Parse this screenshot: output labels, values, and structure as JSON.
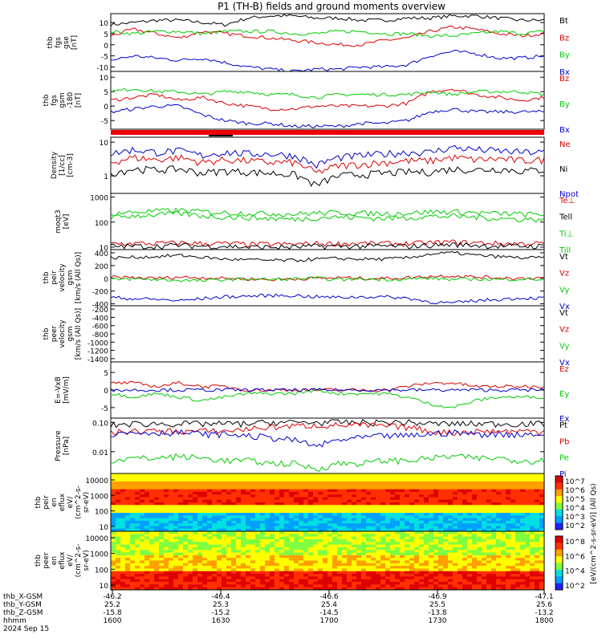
{
  "title": "P1 (TH-B) fields and ground moments overview",
  "chart_data": [
    {
      "type": "line",
      "ylabel": [
        "thb",
        "fgs",
        "gse",
        "[nT]"
      ],
      "yticks": [
        "10",
        "5",
        "0",
        "-5",
        "-10"
      ],
      "ylim": [
        -12,
        14
      ],
      "legend": [
        "Bt",
        "Bz",
        "By",
        "Bx"
      ],
      "colors": [
        "#000000",
        "#dd0000",
        "#00cc00",
        "#0000cc"
      ],
      "series": [
        {
          "name": "Bt",
          "values": [
            9,
            10,
            11,
            11,
            10,
            9,
            12,
            13,
            13,
            12,
            12,
            11,
            11,
            12,
            12,
            13,
            13,
            12,
            11,
            11
          ]
        },
        {
          "name": "Bz",
          "values": [
            4,
            7,
            5,
            3,
            6,
            5,
            4,
            3,
            2,
            1,
            0,
            0,
            2,
            3,
            6,
            8,
            7,
            5,
            4,
            5
          ]
        },
        {
          "name": "By",
          "values": [
            6,
            5,
            6,
            6,
            5,
            6,
            6,
            6,
            5,
            5,
            6,
            6,
            5,
            5,
            4,
            4,
            5,
            6,
            5,
            6
          ]
        },
        {
          "name": "Bx",
          "values": [
            -7,
            -5,
            -6,
            -7,
            -6,
            -8,
            -10,
            -11,
            -12,
            -11,
            -11,
            -10,
            -10,
            -9,
            -5,
            -3,
            -4,
            -6,
            -6,
            -5
          ]
        }
      ]
    },
    {
      "type": "line",
      "ylabel": [
        "thb",
        "fgs",
        "gsm",
        "-180",
        "[nT]"
      ],
      "yticks": [
        "10",
        "5",
        "0",
        "-5"
      ],
      "ylim": [
        -8,
        12
      ],
      "legend": [
        "Bz",
        "By",
        "Bx"
      ],
      "colors": [
        "#dd0000",
        "#00cc00",
        "#0000cc"
      ],
      "series": [
        {
          "name": "Bz",
          "values": [
            2,
            3,
            4,
            2,
            3,
            1,
            0,
            -1,
            -1,
            0,
            0,
            0,
            0,
            1,
            5,
            6,
            4,
            3,
            2,
            3
          ]
        },
        {
          "name": "By",
          "values": [
            5,
            6,
            5,
            5,
            4,
            5,
            5,
            4,
            4,
            3,
            4,
            4,
            4,
            4,
            5,
            4,
            5,
            5,
            5,
            4
          ]
        },
        {
          "name": "Bx",
          "values": [
            -2,
            -1,
            0,
            0,
            -3,
            -5,
            -6,
            -6,
            -7,
            -7,
            -7,
            -6,
            -6,
            -5,
            -2,
            -1,
            -2,
            -2,
            -2,
            -2
          ]
        }
      ]
    },
    {
      "type": "line",
      "ylabel": [
        "Density",
        "[1/cc]",
        "[cm-3]"
      ],
      "yticks": [
        "10",
        "1"
      ],
      "scale": "log",
      "ylim": [
        0.3,
        14
      ],
      "legend": [
        "Ne",
        "Ni",
        "Npot"
      ],
      "colors": [
        "#dd0000",
        "#000000",
        "#0000cc"
      ],
      "series": [
        {
          "name": "Ne",
          "values": [
            2.5,
            3.5,
            3,
            3.5,
            2.5,
            3,
            2.8,
            2.5,
            2.5,
            1.2,
            2,
            2.2,
            2.5,
            2.8,
            2.8,
            3.5,
            3,
            3.2,
            2.8,
            3
          ]
        },
        {
          "name": "Ni",
          "values": [
            1.2,
            1.6,
            1.5,
            1.6,
            1.2,
            1.4,
            1.3,
            1.2,
            1.1,
            0.5,
            1,
            1.1,
            1.2,
            1.3,
            1.3,
            1.6,
            1.5,
            1.6,
            1.4,
            1.5
          ]
        },
        {
          "name": "Npot",
          "values": [
            4.5,
            6,
            5,
            5.5,
            4,
            5,
            4.5,
            4.5,
            4,
            2,
            3.5,
            4,
            4.5,
            5,
            5,
            7,
            6,
            5.5,
            5,
            5
          ]
        }
      ]
    },
    {
      "type": "line",
      "ylabel": [
        "moqt3",
        "[eV]"
      ],
      "yticks": [
        "1000",
        "100",
        "10"
      ],
      "scale": "log",
      "ylim": [
        8,
        1400
      ],
      "legend": [
        "Te⊥",
        "Tell",
        "Ti⊥",
        "Till"
      ],
      "colors": [
        "#dd0000",
        "#000000",
        "#00cc00",
        "#00cc00"
      ],
      "series": [
        {
          "name": "Te⊥",
          "values": [
            14,
            14,
            14,
            15,
            14,
            14,
            13,
            13,
            13,
            14,
            14,
            14,
            14,
            14,
            15,
            16,
            15,
            14,
            14,
            14
          ]
        },
        {
          "name": "Tell",
          "values": [
            11,
            11,
            11,
            12,
            11,
            11,
            10,
            10,
            10,
            11,
            11,
            11,
            11,
            11,
            12,
            13,
            12,
            11,
            11,
            11
          ]
        },
        {
          "name": "Ti⊥",
          "values": [
            220,
            250,
            280,
            300,
            260,
            240,
            230,
            220,
            210,
            230,
            240,
            230,
            220,
            230,
            260,
            260,
            240,
            220,
            210,
            200
          ]
        },
        {
          "name": "Till",
          "values": [
            150,
            180,
            200,
            220,
            180,
            160,
            150,
            140,
            130,
            150,
            160,
            150,
            140,
            150,
            170,
            170,
            160,
            140,
            130,
            130
          ]
        }
      ]
    },
    {
      "type": "line",
      "ylabel": [
        "thb",
        "peir",
        "velocity",
        "gsm",
        "[km/s (All Qs)]"
      ],
      "yticks": [
        "400",
        "200",
        "0",
        "-200",
        "-400"
      ],
      "ylim": [
        -430,
        450
      ],
      "legend": [
        "Vt",
        "Vz",
        "Vy",
        "Vx"
      ],
      "colors": [
        "#000000",
        "#dd0000",
        "#00cc00",
        "#0000cc"
      ],
      "series": [
        {
          "name": "Vt",
          "values": [
            320,
            330,
            340,
            360,
            330,
            300,
            290,
            280,
            280,
            300,
            310,
            300,
            300,
            320,
            380,
            400,
            360,
            340,
            320,
            320
          ]
        },
        {
          "name": "Vz",
          "values": [
            20,
            10,
            0,
            20,
            10,
            0,
            -10,
            -20,
            -10,
            0,
            10,
            0,
            0,
            10,
            30,
            40,
            20,
            10,
            0,
            10
          ]
        },
        {
          "name": "Vy",
          "values": [
            -20,
            -10,
            -20,
            -30,
            -40,
            -20,
            -10,
            -20,
            -10,
            0,
            -20,
            -10,
            -20,
            -10,
            0,
            -20,
            -10,
            -20,
            -10,
            -20
          ]
        },
        {
          "name": "Vx",
          "values": [
            -300,
            -320,
            -330,
            -350,
            -320,
            -290,
            -280,
            -270,
            -270,
            -290,
            -300,
            -290,
            -290,
            -310,
            -370,
            -390,
            -350,
            -330,
            -310,
            -310
          ]
        }
      ]
    },
    {
      "type": "line",
      "ylabel": [
        "thb",
        "peer",
        "velocity",
        "gsm",
        "[km/s (All Qs)]"
      ],
      "yticks": [
        "-200",
        "-400",
        "-600",
        "-800",
        "-1000",
        "-1200",
        "-1400"
      ],
      "ylim": [
        -1480,
        -120
      ],
      "legend": [
        "Vt",
        "Vz",
        "Vy",
        "Vx"
      ],
      "colors": [
        "#000000",
        "#dd0000",
        "#00cc00",
        "#0000cc"
      ],
      "series": []
    },
    {
      "type": "line",
      "ylabel": [
        "E=-VxB",
        "[mV/m]"
      ],
      "yticks": [
        "5",
        "0",
        "-5"
      ],
      "ylim": [
        -8,
        8
      ],
      "legend": [
        "Ez",
        "Ey",
        "Ex"
      ],
      "colors": [
        "#dd0000",
        "#00cc00",
        "#0000cc"
      ],
      "series": [
        {
          "name": "Ez",
          "values": [
            2,
            2,
            1,
            2,
            1,
            1,
            0,
            0,
            0,
            0,
            0,
            0,
            0,
            1,
            2,
            2,
            1,
            1,
            1,
            1
          ]
        },
        {
          "name": "Ey",
          "values": [
            -1,
            -2,
            -1,
            -2,
            -3,
            -2,
            -1,
            -1,
            -1,
            0,
            -1,
            -1,
            -1,
            -2,
            -4,
            -5,
            -3,
            -2,
            -2,
            -2
          ]
        },
        {
          "name": "Ex",
          "values": [
            0,
            0,
            0,
            0,
            0,
            0,
            0,
            0,
            0,
            0,
            0,
            0,
            0,
            0,
            0,
            0,
            0,
            0,
            0,
            0
          ]
        }
      ]
    },
    {
      "type": "line",
      "ylabel": [
        "Pressure",
        "[nPa]"
      ],
      "yticks": [
        "0.10",
        "0.01"
      ],
      "scale": "log",
      "ylim": [
        0.0018,
        0.14
      ],
      "legend": [
        "Pt",
        "Pb",
        "Pe",
        "Pi"
      ],
      "colors": [
        "#000000",
        "#dd0000",
        "#00cc00",
        "#0000cc"
      ],
      "series": [
        {
          "name": "Pt",
          "values": [
            0.08,
            0.09,
            0.09,
            0.09,
            0.09,
            0.09,
            0.09,
            0.1,
            0.1,
            0.1,
            0.1,
            0.1,
            0.1,
            0.1,
            0.09,
            0.09,
            0.09,
            0.09,
            0.09,
            0.09
          ]
        },
        {
          "name": "Pb",
          "values": [
            0.045,
            0.05,
            0.05,
            0.05,
            0.05,
            0.05,
            0.06,
            0.07,
            0.075,
            0.08,
            0.08,
            0.08,
            0.075,
            0.07,
            0.05,
            0.045,
            0.05,
            0.05,
            0.05,
            0.05
          ]
        },
        {
          "name": "Pe",
          "values": [
            0.005,
            0.006,
            0.006,
            0.007,
            0.006,
            0.005,
            0.005,
            0.004,
            0.004,
            0.0025,
            0.004,
            0.004,
            0.005,
            0.005,
            0.006,
            0.007,
            0.006,
            0.006,
            0.005,
            0.005
          ]
        },
        {
          "name": "Pi",
          "values": [
            0.04,
            0.045,
            0.045,
            0.045,
            0.04,
            0.04,
            0.035,
            0.03,
            0.025,
            0.015,
            0.025,
            0.03,
            0.035,
            0.035,
            0.04,
            0.045,
            0.04,
            0.04,
            0.04,
            0.04
          ]
        }
      ]
    },
    {
      "type": "heatmap",
      "ylabel": [
        "thb",
        "peir",
        "en",
        "eflux",
        "eV/",
        "(cm^2-s-",
        "sr-eV)"
      ],
      "yticks": [
        "10000",
        "1000",
        "100",
        "10"
      ]
    },
    {
      "type": "heatmap",
      "ylabel": [
        "thb",
        "peer",
        "en",
        "eflux",
        "eV/",
        "(cm^2-s-",
        "sr-eV)"
      ],
      "yticks": [
        "10000",
        "1000",
        "100",
        "10"
      ]
    }
  ],
  "colorbar_top": {
    "ticks": [
      "10^7",
      "10^6",
      "10^5",
      "10^4",
      "10^3",
      "10^2"
    ]
  },
  "colorbar_bottom": {
    "ticks": [
      "10^8",
      "10^6",
      "10^4",
      "10^2"
    ]
  },
  "colorbar_label": "[eV/(cm^2-s-sr-eV)] (All Qs)",
  "footer": {
    "labels": [
      "thb_X-GSM",
      "thb_Y-GSM",
      "thb_Z-GSM",
      "hhmm",
      "2024 Sep 15"
    ],
    "columns": [
      [
        "-46.2",
        "25.2",
        "-15.8",
        "1600"
      ],
      [
        "-46.4",
        "25.3",
        "-15.2",
        "1630"
      ],
      [
        "-46.6",
        "25.4",
        "-14.5",
        "1700"
      ],
      [
        "-46.9",
        "25.5",
        "-13.8",
        "1730"
      ],
      [
        "-47.1",
        "25.6",
        "-13.2",
        "1800"
      ]
    ]
  }
}
